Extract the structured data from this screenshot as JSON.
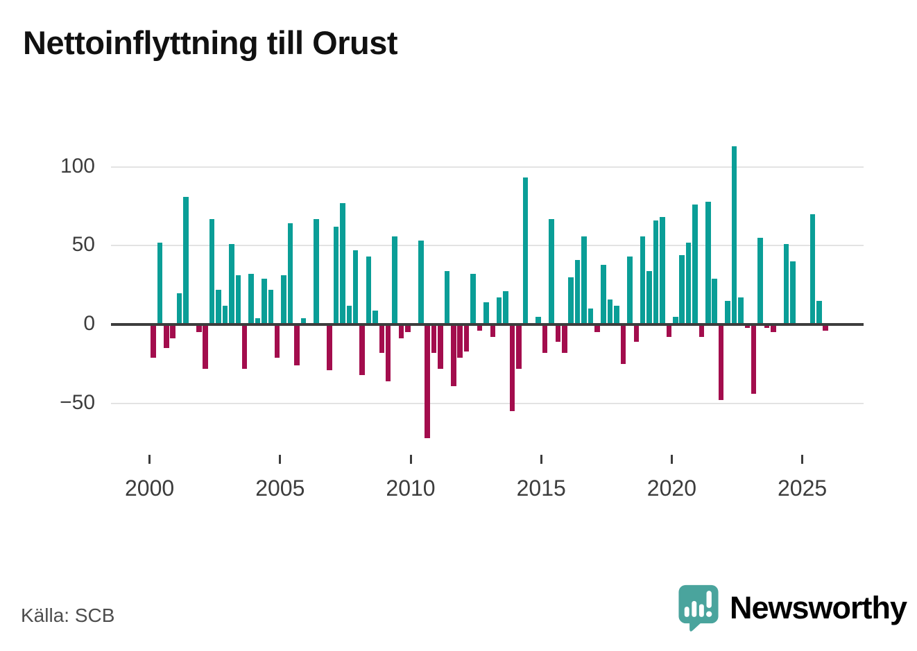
{
  "title": "Nettoinflyttning till Orust",
  "source": "Källa: SCB",
  "logo": {
    "text": "Newsworthy",
    "icon": "bar-chart-speech-bubble"
  },
  "colors": {
    "positive": "#0a9e97",
    "negative": "#a30d4d",
    "grid": "#e3e3e3",
    "axis": "#3d3d3d",
    "tick_text": "#3c3c3c",
    "title_text": "#111111",
    "source_text": "#4d4d4d",
    "logo_teal": "#48a29b",
    "background": "#ffffff"
  },
  "chart_data": {
    "type": "bar",
    "title": "Nettoinflyttning till Orust",
    "x_unit": "quarter",
    "start_year": 2000,
    "end_quarter": "2025Q4",
    "xlabel": "",
    "ylabel": "",
    "ylim": [
      -80,
      120
    ],
    "yticks": [
      100,
      50,
      0,
      -50
    ],
    "xticks": [
      2000,
      2005,
      2010,
      2015,
      2020,
      2025
    ],
    "grid": "horizontal",
    "legend": "none",
    "series": [
      {
        "name": "Nettoinflyttning",
        "values": [
          -21,
          52,
          -15,
          -9,
          20,
          81,
          0,
          -5,
          -28,
          67,
          22,
          12,
          51,
          31,
          -28,
          32,
          4,
          29,
          22,
          -21,
          31,
          64,
          -26,
          4,
          0,
          67,
          0,
          -29,
          62,
          77,
          12,
          47,
          -32,
          43,
          9,
          -18,
          -36,
          56,
          -9,
          -5,
          0,
          53,
          -72,
          -18,
          -28,
          34,
          -39,
          -21,
          -17,
          32,
          -4,
          14,
          -8,
          17,
          21,
          -55,
          -28,
          93,
          -1,
          5,
          -18,
          67,
          -11,
          -18,
          30,
          41,
          56,
          10,
          -5,
          38,
          16,
          12,
          -25,
          43,
          -11,
          56,
          34,
          66,
          68,
          -8,
          5,
          44,
          52,
          76,
          -8,
          78,
          29,
          -48,
          15,
          113,
          17,
          -2,
          -44,
          55,
          -2,
          -5,
          0,
          51,
          40,
          0,
          -1,
          70,
          15,
          -4
        ]
      }
    ]
  }
}
